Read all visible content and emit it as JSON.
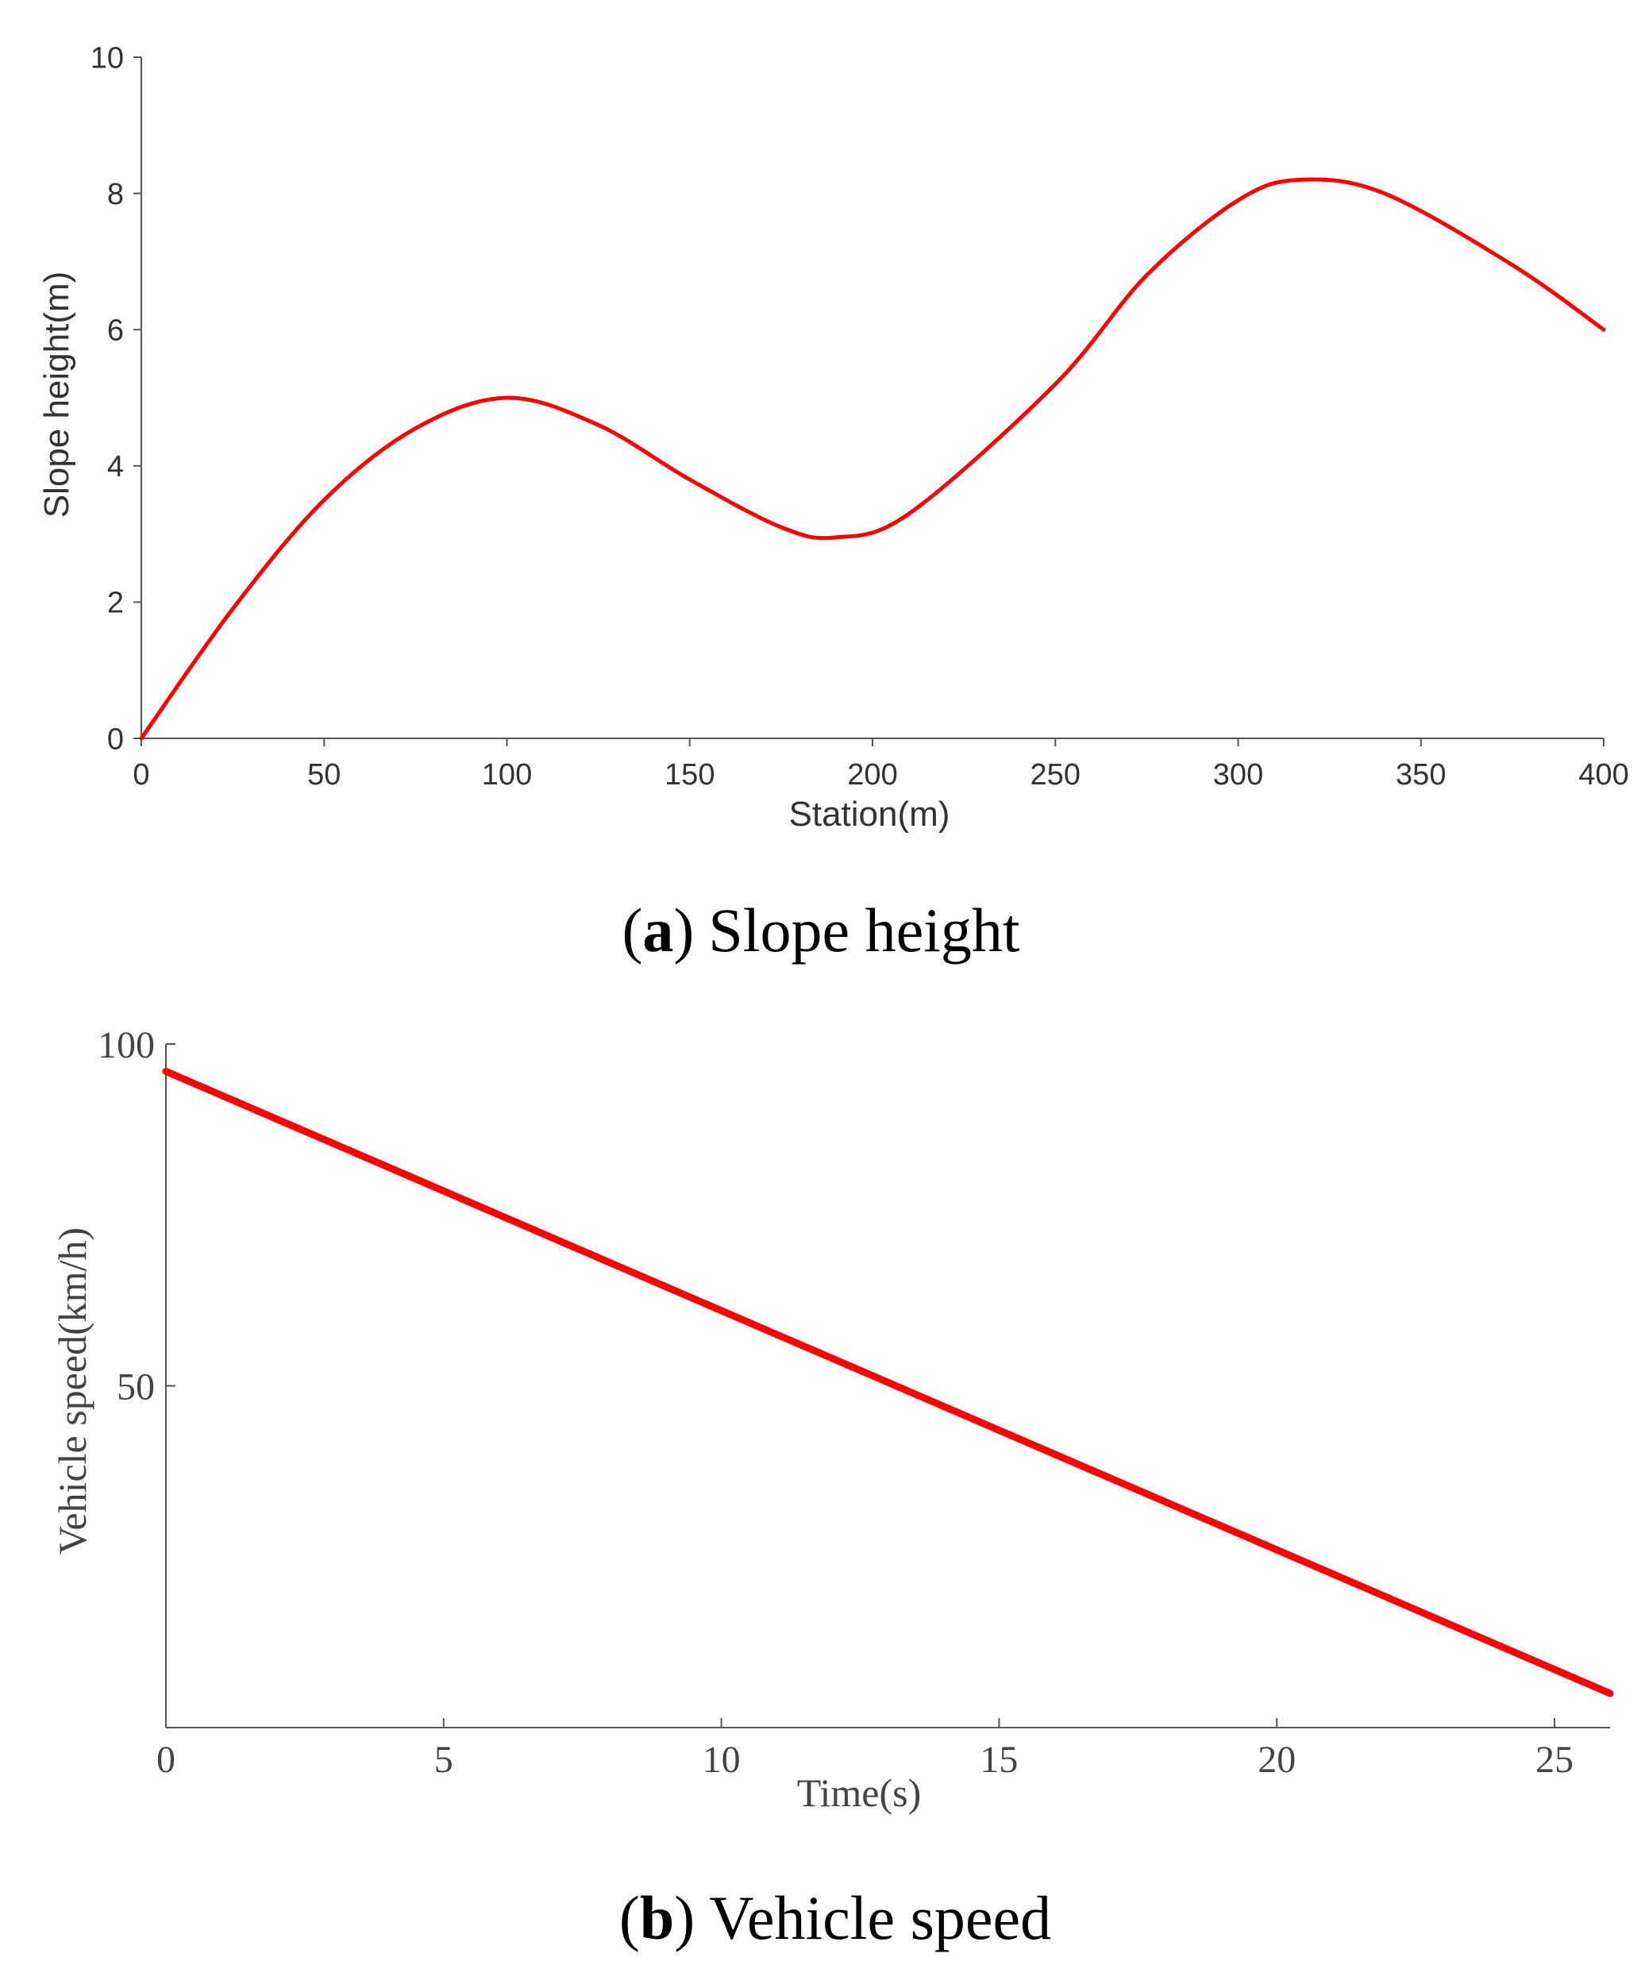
{
  "chart_data": [
    {
      "type": "line",
      "title": "",
      "xlabel": "Station(m)",
      "ylabel": "Slope height(m)",
      "xlim": [
        0,
        400
      ],
      "ylim": [
        0,
        10
      ],
      "xticks": [
        0,
        50,
        100,
        150,
        200,
        250,
        300,
        350,
        400
      ],
      "yticks": [
        0,
        2,
        4,
        6,
        8,
        10
      ],
      "grid": false,
      "series": [
        {
          "name": "Slope height",
          "color": "#ff0000",
          "x": [
            0,
            25,
            50,
            75,
            100,
            125,
            150,
            175,
            190,
            210,
            250,
            275,
            300,
            317,
            340,
            375,
            400
          ],
          "y": [
            0,
            1.9,
            3.5,
            4.55,
            5.0,
            4.6,
            3.8,
            3.1,
            2.95,
            3.3,
            5.2,
            6.8,
            7.9,
            8.2,
            8.0,
            6.95,
            6.0
          ]
        }
      ],
      "caption": {
        "letter": "a",
        "open": "(",
        "close": ")",
        "text": "Slope height"
      }
    },
    {
      "type": "line",
      "title": "",
      "xlabel": "Time(s)",
      "ylabel": "Vehicle speed(km/h)",
      "xlim": [
        0,
        26
      ],
      "ylim": [
        0,
        100
      ],
      "xticks": [
        0,
        5,
        10,
        15,
        20,
        25
      ],
      "yticks": [
        50,
        100
      ],
      "grid": false,
      "series": [
        {
          "name": "Vehicle speed",
          "color": "#ff0000",
          "x": [
            0,
            26
          ],
          "y": [
            96,
            5
          ]
        }
      ],
      "caption": {
        "letter": "b",
        "open": "(",
        "close": ")",
        "text": "Vehicle speed"
      }
    }
  ]
}
